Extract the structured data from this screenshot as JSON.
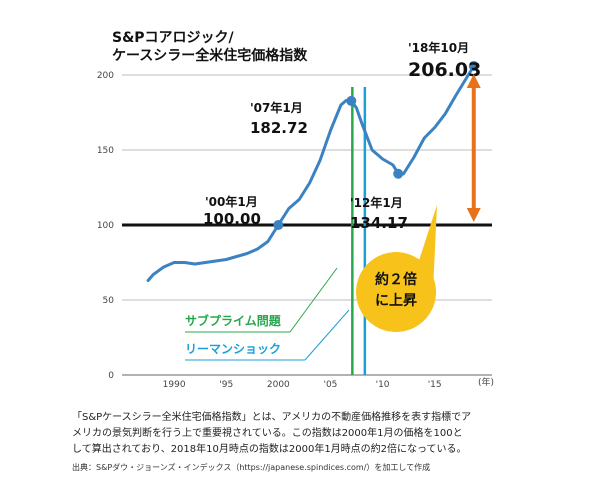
{
  "chart_data": {
    "type": "line",
    "title": "S&Pコアロジック/\nケースシラー全米住宅価格指数",
    "title_lines": [
      "S&Pコアロジック/",
      "ケースシラー全米住宅価格指数"
    ],
    "x_unit": "(年)",
    "ylim": [
      0,
      210
    ],
    "y_ticks": [
      "200",
      "150",
      "100",
      "50",
      "0"
    ],
    "x_ticks": [
      "1990",
      "'95",
      "2000",
      "'05",
      "'10",
      "'15"
    ],
    "x": [
      1987.5,
      1988,
      1989,
      1990,
      1991,
      1992,
      1993,
      1994,
      1995,
      1996,
      1997,
      1998,
      1999,
      2000,
      2001,
      2002,
      2003,
      2004,
      2005,
      2006,
      2006.5,
      2007,
      2007.5,
      2008,
      2009,
      2010,
      2011,
      2011.5,
      2012,
      2013,
      2014,
      2015,
      2016,
      2017,
      2018.75
    ],
    "values": [
      63,
      67,
      72,
      75,
      75,
      74,
      75,
      76,
      77,
      79,
      81,
      84,
      89,
      100,
      111,
      117,
      128,
      143,
      163,
      180,
      183,
      182.72,
      178,
      168,
      150,
      144,
      140,
      134.17,
      134,
      145,
      158,
      165,
      174,
      186,
      206.03
    ],
    "annotations": {
      "a2000": {
        "date": "'00年1月",
        "value": "100.00"
      },
      "a2007": {
        "date": "'07年1月",
        "value": "182.72"
      },
      "a2012": {
        "date": "'12年1月",
        "value": "134.17"
      },
      "a2018": {
        "date": "'18年10月",
        "value": "206.03"
      }
    },
    "markers": [
      {
        "year": 2000,
        "value": 100.0
      },
      {
        "year": 2007,
        "value": 182.72
      },
      {
        "year": 2011.5,
        "value": 134.17
      },
      {
        "year": 2018.75,
        "value": 206.03
      }
    ],
    "vlines": {
      "subprime": {
        "year": 2007.1,
        "label": "サブプライム問題",
        "color": "#27a84a"
      },
      "lehman": {
        "year": 2008.3,
        "label": "リーマンショック",
        "color": "#1aa0d6"
      }
    },
    "callout": {
      "line1": "約２倍",
      "line2": "に上昇",
      "color": "#f7c21a"
    },
    "arrow_color": "#e8711b",
    "line_color": "#3a82c2",
    "grid": true
  },
  "note": {
    "line1": "「S&Pケースシラー全米住宅価格指数」とは、アメリカの不動産価格推移を表す指標でア",
    "line2": "メリカの景気判断を行う上で重要視されている。この指数は2000年1月の価格を100と",
    "line3": "して算出されており、2018年10月時点の指数は2000年1月時点の約2倍になっている。"
  },
  "source": "出典：S&Pダウ・ジョーンズ・インデックス（https://japanese.spindices.com/）を加工して作成"
}
